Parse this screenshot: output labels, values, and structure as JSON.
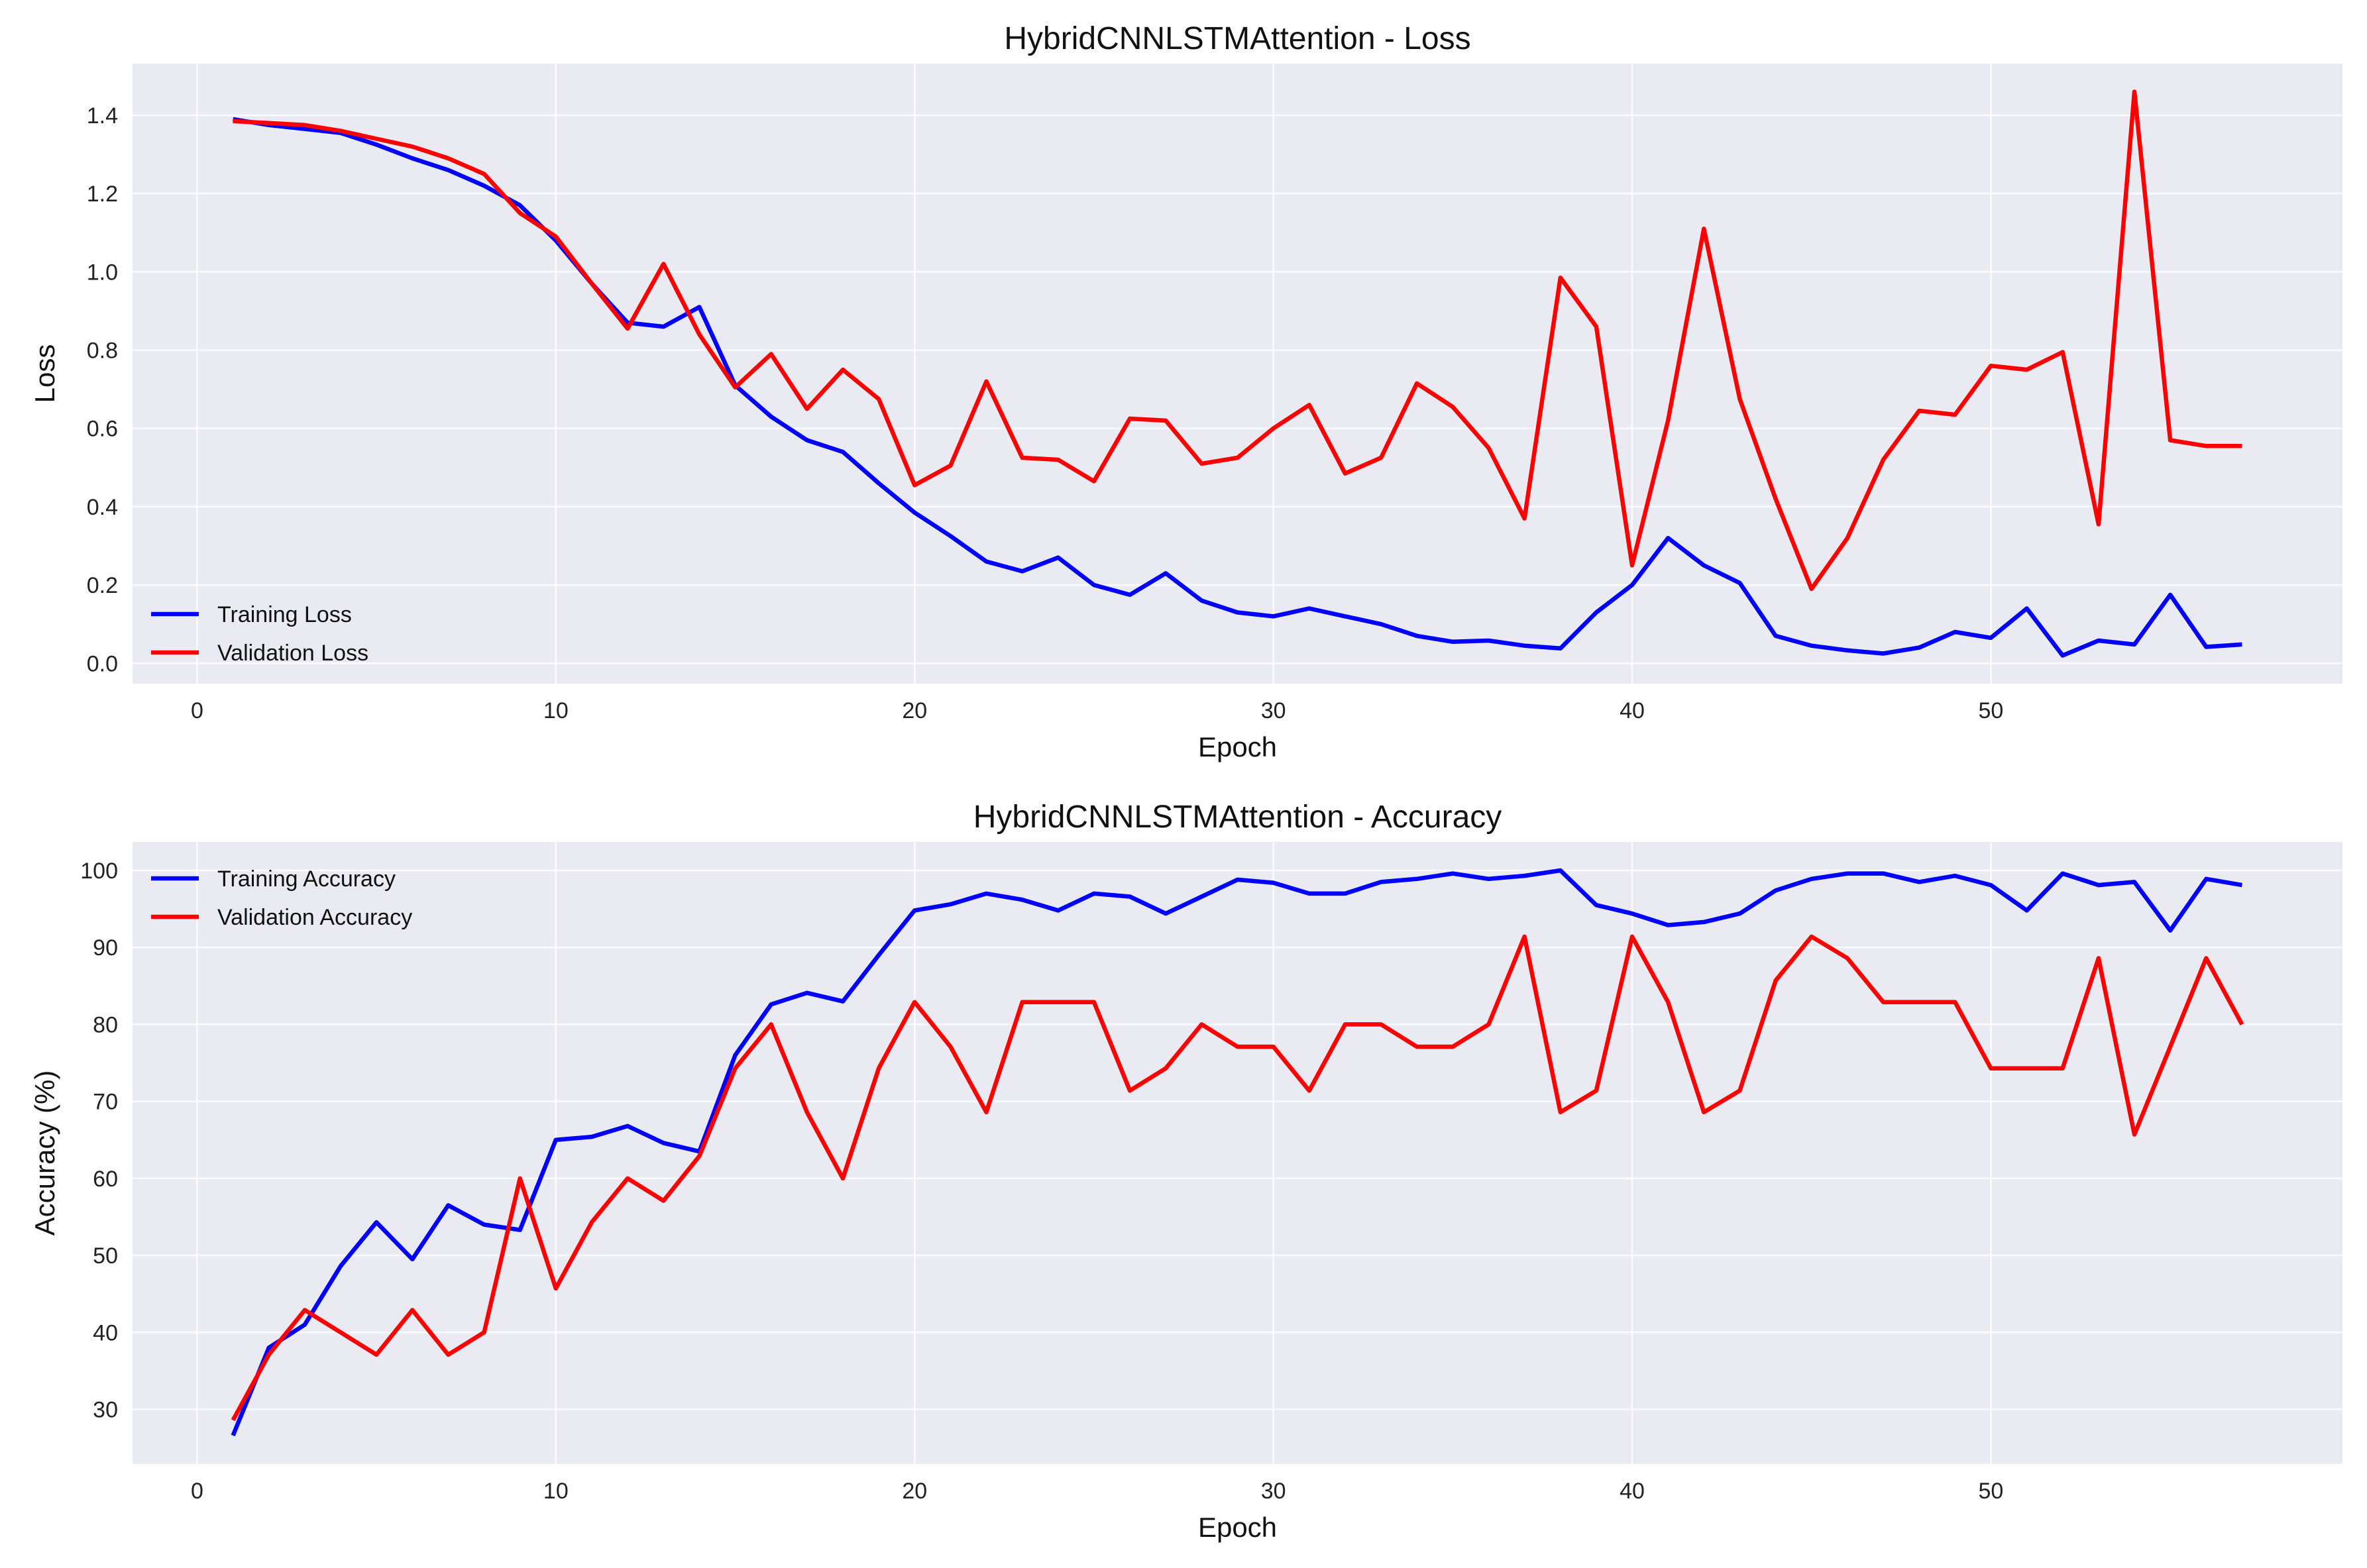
{
  "chart_data": [
    {
      "type": "line",
      "title": "HybridCNNLSTMAttention - Loss",
      "xlabel": "Epoch",
      "ylabel": "Loss",
      "xlim": [
        -1.8,
        59.8
      ],
      "ylim": [
        -0.052,
        1.532
      ],
      "xticks": [
        0,
        10,
        20,
        30,
        40,
        50
      ],
      "yticks": [
        0.0,
        0.2,
        0.4,
        0.6,
        0.8,
        1.0,
        1.2,
        1.4
      ],
      "ytick_labels": [
        "0.0",
        "0.2",
        "0.4",
        "0.6",
        "0.8",
        "1.0",
        "1.2",
        "1.4"
      ],
      "grid": true,
      "legend": "lower-left",
      "x_start": 1,
      "series": [
        {
          "name": "Training Loss",
          "color": "#0000ff",
          "values": [
            1.39,
            1.375,
            1.365,
            1.355,
            1.325,
            1.29,
            1.26,
            1.22,
            1.17,
            1.08,
            0.97,
            0.87,
            0.86,
            0.91,
            0.71,
            0.63,
            0.57,
            0.54,
            0.46,
            0.385,
            0.325,
            0.26,
            0.235,
            0.27,
            0.2,
            0.175,
            0.23,
            0.16,
            0.13,
            0.12,
            0.14,
            0.12,
            0.1,
            0.07,
            0.055,
            0.058,
            0.045,
            0.038,
            0.13,
            0.2,
            0.32,
            0.25,
            0.205,
            0.07,
            0.045,
            0.033,
            0.025,
            0.04,
            0.08,
            0.065,
            0.14,
            0.02,
            0.058,
            0.048,
            0.175,
            0.042,
            0.048
          ]
        },
        {
          "name": "Validation Loss",
          "color": "#ff0000",
          "values": [
            1.385,
            1.38,
            1.375,
            1.36,
            1.34,
            1.32,
            1.29,
            1.25,
            1.15,
            1.09,
            0.97,
            0.855,
            1.02,
            0.84,
            0.705,
            0.79,
            0.65,
            0.75,
            0.675,
            0.455,
            0.505,
            0.72,
            0.525,
            0.52,
            0.465,
            0.625,
            0.62,
            0.51,
            0.525,
            0.6,
            0.66,
            0.485,
            0.525,
            0.715,
            0.655,
            0.55,
            0.37,
            0.985,
            0.86,
            0.25,
            0.62,
            1.11,
            0.675,
            0.42,
            0.19,
            0.32,
            0.52,
            0.645,
            0.635,
            0.76,
            0.75,
            0.795,
            0.355,
            1.46,
            0.57,
            0.555,
            0.555
          ]
        }
      ]
    },
    {
      "type": "line",
      "title": "HybridCNNLSTMAttention - Accuracy",
      "xlabel": "Epoch",
      "ylabel": "Accuracy (%)",
      "xlim": [
        -1.8,
        59.8
      ],
      "ylim": [
        22.9,
        103.7
      ],
      "xticks": [
        0,
        10,
        20,
        30,
        40,
        50
      ],
      "yticks": [
        30,
        40,
        50,
        60,
        70,
        80,
        90,
        100
      ],
      "ytick_labels": [
        "30",
        "40",
        "50",
        "60",
        "70",
        "80",
        "90",
        "100"
      ],
      "grid": true,
      "legend": "upper-left",
      "x_start": 1,
      "series": [
        {
          "name": "Training Accuracy",
          "color": "#0000ff",
          "values": [
            26.6,
            38,
            41,
            48.6,
            54.3,
            49.5,
            56.5,
            54,
            53.3,
            65,
            65.4,
            66.8,
            64.6,
            63.5,
            76,
            82.6,
            84.1,
            83,
            89,
            94.8,
            95.6,
            97,
            96.2,
            94.8,
            97,
            96.6,
            94.4,
            96.6,
            98.8,
            98.4,
            97,
            97,
            98.5,
            98.9,
            99.6,
            98.9,
            99.3,
            100,
            95.5,
            94.4,
            92.9,
            93.3,
            94.4,
            97.4,
            98.9,
            99.6,
            99.6,
            98.5,
            99.3,
            98.1,
            94.8,
            99.6,
            98.1,
            98.5,
            92.2,
            98.9,
            98.1
          ]
        },
        {
          "name": "Validation Accuracy",
          "color": "#ff0000",
          "values": [
            28.6,
            37.1,
            42.9,
            40,
            37.1,
            42.9,
            37.1,
            40,
            60,
            45.7,
            54.3,
            60,
            57.1,
            62.9,
            74.3,
            80,
            68.6,
            60,
            74.3,
            82.9,
            77.1,
            68.6,
            82.9,
            82.9,
            82.9,
            71.4,
            74.3,
            80,
            77.1,
            77.1,
            71.4,
            80,
            80,
            77.1,
            77.1,
            80,
            91.4,
            68.6,
            71.4,
            91.4,
            82.9,
            68.6,
            71.4,
            85.7,
            91.4,
            88.6,
            82.9,
            82.9,
            82.9,
            74.3,
            74.3,
            74.3,
            88.6,
            65.7,
            77.1,
            88.6,
            80
          ]
        }
      ]
    }
  ]
}
